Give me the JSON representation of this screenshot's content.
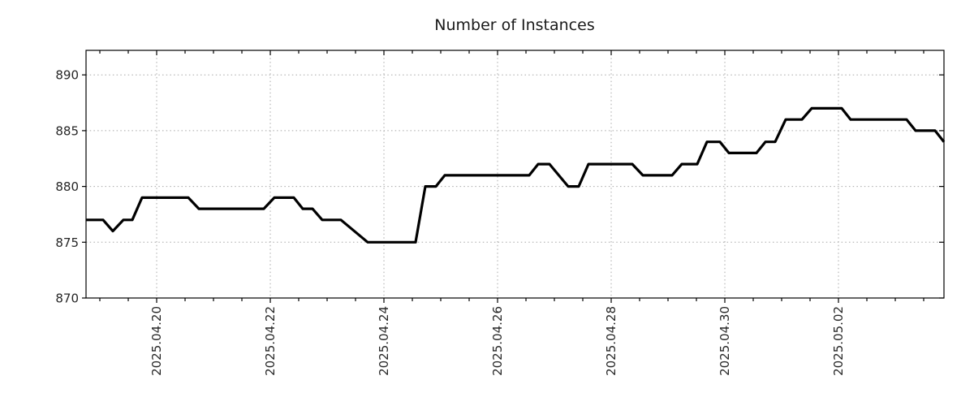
{
  "colors": {
    "background": "#ffffff",
    "line": "#000000",
    "grid": "#a8a8a8",
    "axis": "#000000",
    "text": "#262626",
    "title_text": "#1a1a1a"
  },
  "chart_data": {
    "type": "line",
    "title": "Number of Instances",
    "legend": null,
    "grid": "dotted lines at major ticks, both axes",
    "x_axis": {
      "kind": "date",
      "range_days_from_2025_04_20": [
        -1.243,
        13.857
      ],
      "major_tick_step_days": 2,
      "minor_tick_step_days": 0.5,
      "tick_label_rotation_deg": -90,
      "major_ticks": [
        {
          "day": 0,
          "label": "2025.04.20"
        },
        {
          "day": 2,
          "label": "2025.04.22"
        },
        {
          "day": 4,
          "label": "2025.04.24"
        },
        {
          "day": 6,
          "label": "2025.04.26"
        },
        {
          "day": 8,
          "label": "2025.04.28"
        },
        {
          "day": 10,
          "label": "2025.04.30"
        },
        {
          "day": 12,
          "label": "2025.05.02"
        }
      ]
    },
    "y_axis": {
      "range": [
        870,
        892.2
      ],
      "ticks": [
        "870",
        "875",
        "880",
        "885",
        "890"
      ],
      "tick_values": [
        870,
        875,
        880,
        885,
        890
      ]
    },
    "series": [
      {
        "name": "instances",
        "color": "#000000",
        "stroke_width": 3.2,
        "points_day_value": [
          [
            -1.243,
            877
          ],
          [
            -0.943,
            877
          ],
          [
            -0.771,
            876
          ],
          [
            -0.586,
            877
          ],
          [
            -0.429,
            877
          ],
          [
            -0.257,
            879
          ],
          [
            0.557,
            879
          ],
          [
            0.743,
            878
          ],
          [
            1.886,
            878
          ],
          [
            2.071,
            879
          ],
          [
            2.414,
            879
          ],
          [
            2.571,
            878
          ],
          [
            2.743,
            878
          ],
          [
            2.914,
            877
          ],
          [
            3.243,
            877
          ],
          [
            3.714,
            875
          ],
          [
            4.557,
            875
          ],
          [
            4.729,
            880
          ],
          [
            4.914,
            880
          ],
          [
            5.071,
            881
          ],
          [
            6.557,
            881
          ],
          [
            6.714,
            882
          ],
          [
            6.914,
            882
          ],
          [
            7.243,
            880
          ],
          [
            7.429,
            880
          ],
          [
            7.6,
            882
          ],
          [
            8.371,
            882
          ],
          [
            8.557,
            881
          ],
          [
            9.071,
            881
          ],
          [
            9.243,
            882
          ],
          [
            9.514,
            882
          ],
          [
            9.686,
            884
          ],
          [
            9.914,
            884
          ],
          [
            10.071,
            883
          ],
          [
            10.557,
            883
          ],
          [
            10.714,
            884
          ],
          [
            10.886,
            884
          ],
          [
            11.071,
            886
          ],
          [
            11.357,
            886
          ],
          [
            11.529,
            887
          ],
          [
            12.057,
            887
          ],
          [
            12.214,
            886
          ],
          [
            13.2,
            886
          ],
          [
            13.357,
            885
          ],
          [
            13.7,
            885
          ],
          [
            13.857,
            884
          ]
        ]
      }
    ]
  }
}
